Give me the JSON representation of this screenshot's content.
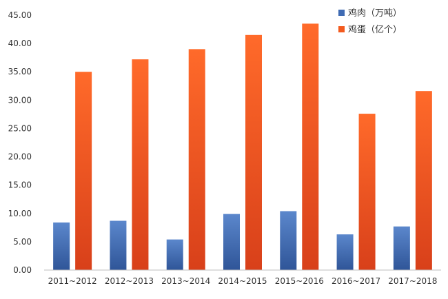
{
  "chart_data": {
    "type": "bar",
    "categories": [
      "2011~2012",
      "2012~2013",
      "2013~2014",
      "2014~2015",
      "2015~2016",
      "2016~2017",
      "2017~2018"
    ],
    "series": [
      {
        "name": "鸡肉（万吨）",
        "values": [
          8.4,
          8.7,
          5.4,
          9.9,
          10.4,
          6.3,
          7.7
        ],
        "color": "#3f6bb3"
      },
      {
        "name": "鸡蛋（亿个）",
        "values": [
          35.0,
          37.2,
          39.0,
          41.5,
          43.5,
          27.6,
          31.6
        ],
        "color": "#f35a1e"
      }
    ],
    "yticks": [
      "0.00",
      "5.00",
      "10.00",
      "15.00",
      "20.00",
      "25.00",
      "30.00",
      "35.00",
      "40.00",
      "45.00"
    ],
    "ylim": [
      0,
      45
    ],
    "grid": false,
    "legend_position": "top-right"
  }
}
